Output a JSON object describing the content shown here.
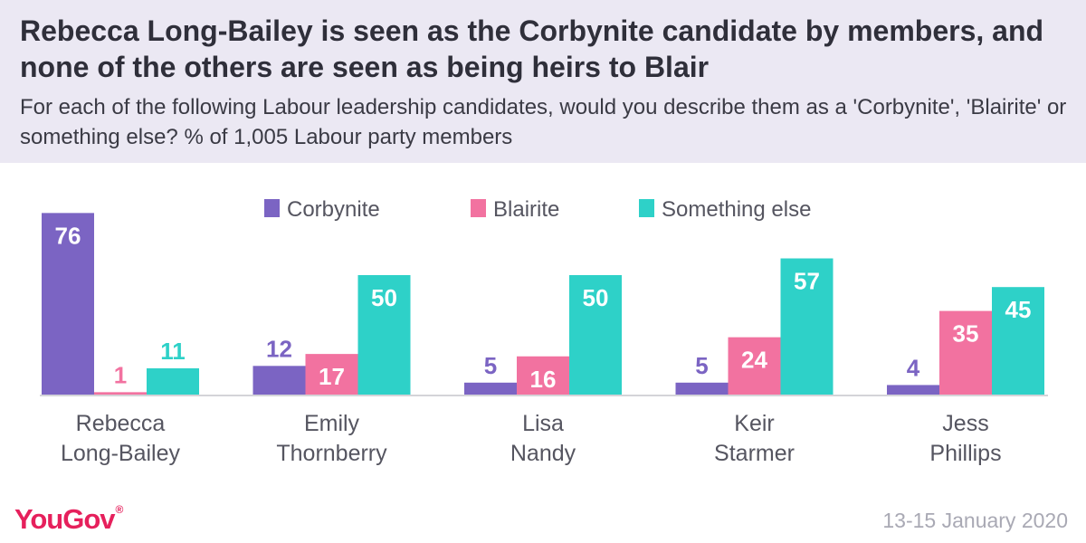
{
  "header": {
    "title": "Rebecca Long-Bailey is seen as the Corbynite candidate by members, and none of the others are seen as being heirs to Blair",
    "subtitle": "For each of the following Labour leadership candidates, would you describe them as a 'Corbynite', 'Blairite' or something else? % of 1,005 Labour party members"
  },
  "footer": {
    "logo": "YouGov",
    "date": "13-15 January 2020"
  },
  "chart_data": {
    "type": "bar",
    "title": "",
    "xlabel": "",
    "ylabel": "",
    "ylim": [
      0,
      80
    ],
    "grid": false,
    "legend_position": "top-right",
    "categories": [
      [
        "Rebecca",
        "Long-Bailey"
      ],
      [
        "Emily",
        "Thornberry"
      ],
      [
        "Lisa",
        "Nandy"
      ],
      [
        "Keir",
        "Starmer"
      ],
      [
        "Jess",
        "Phillips"
      ]
    ],
    "series": [
      {
        "name": "Corbynite",
        "color": "#7b64c3",
        "values": [
          76,
          12,
          5,
          5,
          4
        ]
      },
      {
        "name": "Blairite",
        "color": "#f272a0",
        "values": [
          1,
          17,
          16,
          24,
          35
        ]
      },
      {
        "name": "Something else",
        "color": "#2ed1c8",
        "values": [
          11,
          50,
          50,
          57,
          45
        ]
      }
    ],
    "label_text_color": "#ffffff",
    "axis_color": "#d4d4d8",
    "category_label_color": "#555560"
  }
}
